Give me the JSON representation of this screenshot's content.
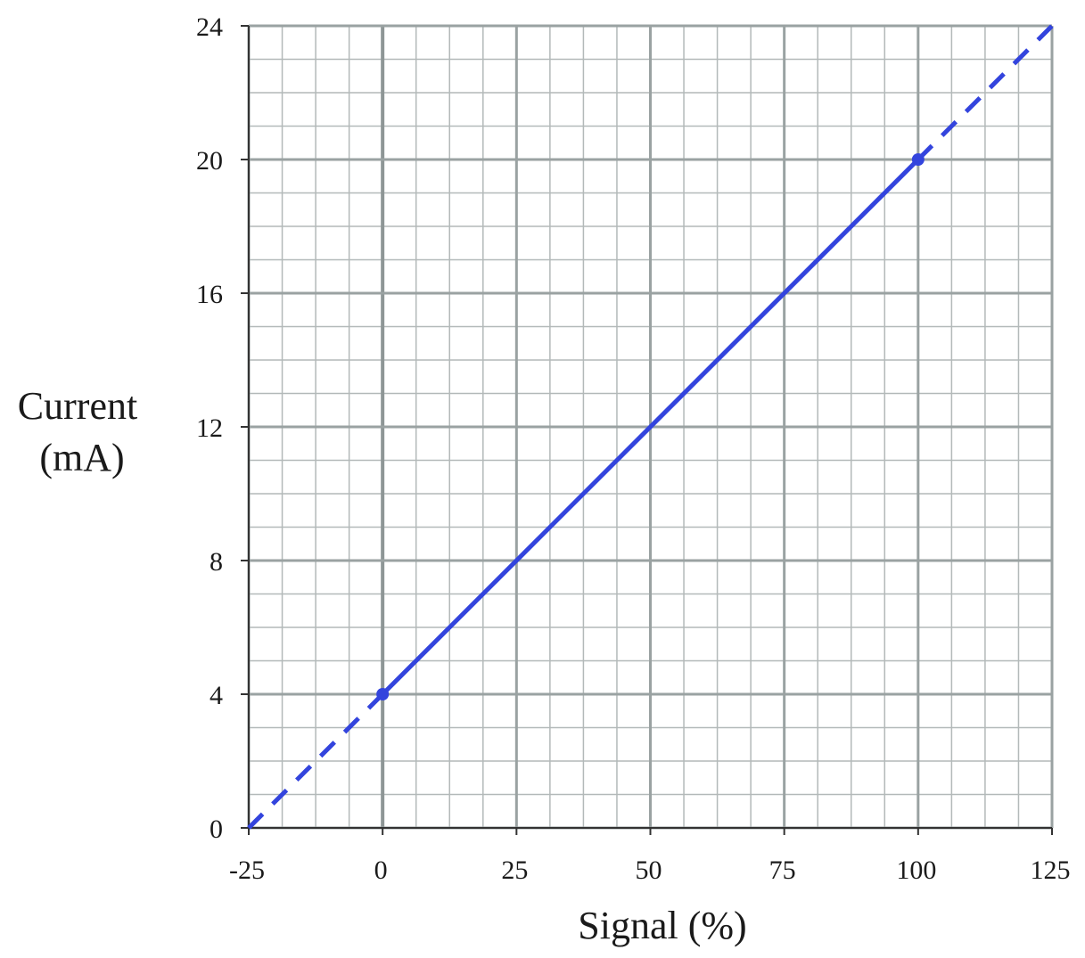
{
  "chart_data": {
    "type": "line",
    "xlabel": "Signal (%)",
    "ylabel_lines": [
      "Current",
      "(mA)"
    ],
    "xlim": [
      -25,
      125
    ],
    "ylim": [
      0,
      24
    ],
    "x_ticks": [
      -25,
      0,
      25,
      50,
      75,
      100,
      125
    ],
    "y_ticks": [
      0,
      4,
      8,
      12,
      16,
      20,
      24
    ],
    "x_tick_labels": [
      "-25",
      "0",
      "25",
      "50",
      "75",
      "100",
      "125"
    ],
    "y_tick_labels": [
      "0",
      "4",
      "8",
      "12",
      "16",
      "20",
      "24"
    ],
    "x_minor_step": 6.25,
    "y_minor_step": 1,
    "grid": true,
    "series": [
      {
        "style": "solid",
        "color": "#3344dd",
        "x": [
          0,
          100
        ],
        "y": [
          4,
          20
        ]
      },
      {
        "style": "dashed",
        "color": "#3344dd",
        "x": [
          -25,
          0
        ],
        "y": [
          0,
          4
        ]
      },
      {
        "style": "dashed",
        "color": "#3344dd",
        "x": [
          100,
          125
        ],
        "y": [
          20,
          24
        ]
      }
    ],
    "points": [
      {
        "x": 0,
        "y": 4
      },
      {
        "x": 100,
        "y": 20
      }
    ],
    "colors": {
      "line": "#3344dd",
      "major_grid": "#9aa2a2",
      "minor_grid": "#b3b9b9",
      "zero_line": "#8e9696",
      "axis": "#333333"
    }
  }
}
